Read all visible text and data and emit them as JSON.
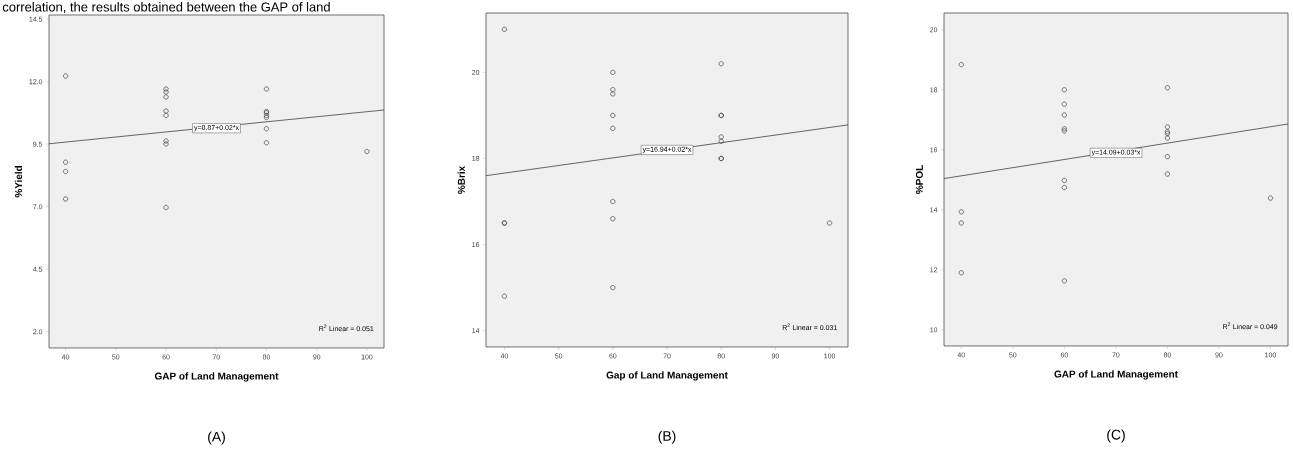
{
  "chart_data": [
    {
      "type": "scatter",
      "xlabel": "GAP of Land Management",
      "ylabel": "%Yield",
      "xlim": [
        36.7,
        103.4
      ],
      "ylim": [
        1.35,
        14.67
      ],
      "xticks": [
        40,
        50,
        60,
        70,
        80,
        90,
        100
      ],
      "yticks": [
        {
          "value": 2,
          "label": "2.0"
        },
        4.5,
        {
          "value": 7,
          "label": "7.0"
        },
        9.5,
        {
          "value": 12,
          "label": "12.0"
        },
        14.5
      ],
      "grid": false,
      "marker": "circle",
      "series": [
        {
          "color": "#404040",
          "x": [
            40,
            40,
            40,
            40,
            60,
            60,
            60,
            60,
            60,
            60,
            60,
            60,
            80,
            80,
            80,
            80,
            80,
            80,
            80,
            100
          ],
          "values": [
            12.23,
            8.78,
            8.41,
            7.31,
            11.71,
            11.59,
            11.39,
            10.83,
            10.65,
            9.63,
            9.51,
            6.97,
            11.71,
            10.81,
            10.76,
            10.65,
            10.57,
            10.12,
            9.56,
            9.21
          ]
        },
        {
          "type": "line",
          "marker": "none",
          "color": "#404040",
          "x": [
            36.7,
            103.4
          ],
          "values": [
            9.52,
            10.87
          ]
        }
      ],
      "annotations": [
        "y=8.87+0.02*x",
        "R$^{2}$ Linear = 0.051",
        "(A)",
        "correlation, the results obtained between the GAP of land"
      ]
    },
    {
      "type": "scatter",
      "xlabel": "Gap of Land Management",
      "ylabel": "%Brix",
      "xlim": [
        36.6,
        103.4
      ],
      "ylim": [
        13.62,
        21.38
      ],
      "xticks": [
        40,
        50,
        60,
        70,
        80,
        90,
        100
      ],
      "yticks": [
        14,
        16,
        18,
        20
      ],
      "grid": false,
      "marker": "circle",
      "series": [
        {
          "color": "#404040",
          "x": [
            40,
            40,
            40,
            40,
            60,
            60,
            60,
            60,
            60,
            60,
            60,
            60,
            80,
            80,
            80,
            80,
            80,
            80,
            80,
            100
          ],
          "values": [
            21.0,
            16.5,
            16.5,
            14.8,
            20.0,
            19.6,
            19.5,
            19.0,
            18.7,
            17.0,
            16.6,
            15.0,
            20.2,
            19.0,
            19.0,
            18.5,
            18.4,
            18.0,
            18.0,
            16.5
          ]
        },
        {
          "type": "line",
          "marker": "none",
          "color": "#404040",
          "x": [
            36.6,
            103.4
          ],
          "values": [
            17.6,
            18.78
          ]
        }
      ],
      "annotations": [
        "y=16.94+0.02*x",
        "R$^{2}$ Linear = 0.031",
        "(B)"
      ]
    },
    {
      "type": "scatter",
      "xlabel": "GAP of Land Management",
      "ylabel": "%POL",
      "xlim": [
        36.65,
        103.4
      ],
      "ylim": [
        9.46,
        20.56
      ],
      "xticks": [
        40,
        50,
        60,
        70,
        80,
        90,
        100
      ],
      "yticks": [
        10,
        12,
        14,
        16,
        18,
        20
      ],
      "grid": false,
      "marker": "circle",
      "series": [
        {
          "color": "#404040",
          "x": [
            40,
            40,
            40,
            40,
            60,
            60,
            60,
            60,
            60,
            60,
            60,
            60,
            80,
            80,
            80,
            80,
            80,
            80,
            80,
            100
          ],
          "values": [
            18.84,
            13.93,
            13.56,
            11.9,
            18.0,
            17.52,
            17.16,
            16.7,
            16.63,
            14.98,
            14.74,
            11.63,
            18.07,
            16.76,
            16.6,
            16.54,
            16.39,
            15.77,
            15.19,
            14.39
          ]
        },
        {
          "type": "line",
          "marker": "none",
          "color": "#404040",
          "x": [
            36.65,
            103.4
          ],
          "values": [
            15.04,
            16.86
          ]
        }
      ],
      "annotations": [
        "y=14.09+0.03*x",
        "R$^{2}$ Linear = 0.049",
        "(C)"
      ]
    }
  ]
}
